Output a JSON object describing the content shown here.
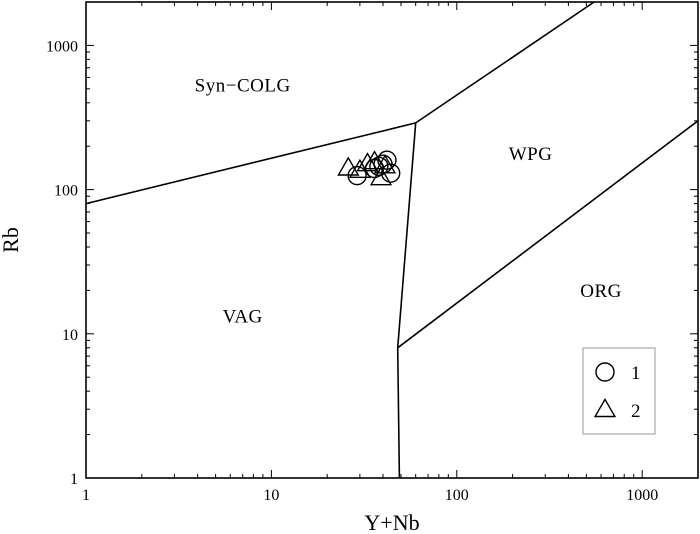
{
  "chart_data": {
    "type": "scatter",
    "title": "",
    "xlabel": "Y+Nb",
    "ylabel": "Rb",
    "x_scale": "log",
    "y_scale": "log",
    "xlim": [
      1,
      2000
    ],
    "ylim": [
      1,
      2000
    ],
    "x_ticks": [
      {
        "value": 1,
        "label": "1"
      },
      {
        "value": 10,
        "label": "10"
      },
      {
        "value": 100,
        "label": "100"
      },
      {
        "value": 1000,
        "label": "1000"
      }
    ],
    "y_ticks": [
      {
        "value": 1,
        "label": "1"
      },
      {
        "value": 10,
        "label": "10"
      },
      {
        "value": 100,
        "label": "100"
      },
      {
        "value": 1000,
        "label": "1000"
      }
    ],
    "grid": false,
    "boundaries": [
      {
        "points": [
          [
            1,
            80
          ],
          [
            60,
            290
          ]
        ]
      },
      {
        "points": [
          [
            60,
            290
          ],
          [
            48,
            8
          ]
        ]
      },
      {
        "points": [
          [
            48,
            8
          ],
          [
            49,
            1
          ]
        ]
      },
      {
        "points": [
          [
            60,
            290
          ],
          [
            550,
            2000
          ]
        ]
      },
      {
        "points": [
          [
            48,
            8
          ],
          [
            2000,
            300
          ]
        ]
      }
    ],
    "regions": [
      {
        "label": "Syn−COLG",
        "x": 7,
        "y": 480
      },
      {
        "label": "WPG",
        "x": 250,
        "y": 160
      },
      {
        "label": "VAG",
        "x": 7,
        "y": 12
      },
      {
        "label": "ORG",
        "x": 600,
        "y": 18
      }
    ],
    "series": [
      {
        "name": "1",
        "marker": "circle",
        "points": [
          [
            29,
            125
          ],
          [
            36,
            140
          ],
          [
            40,
            150
          ],
          [
            42,
            160
          ],
          [
            44,
            130
          ],
          [
            38,
            145
          ]
        ]
      },
      {
        "name": "2",
        "marker": "triangle",
        "points": [
          [
            26,
            140
          ],
          [
            30,
            135
          ],
          [
            33,
            150
          ],
          [
            36,
            155
          ],
          [
            39,
            120
          ],
          [
            41,
            145
          ]
        ]
      }
    ],
    "legend": {
      "position": "bottom-right",
      "entries": [
        "1",
        "2"
      ]
    }
  }
}
